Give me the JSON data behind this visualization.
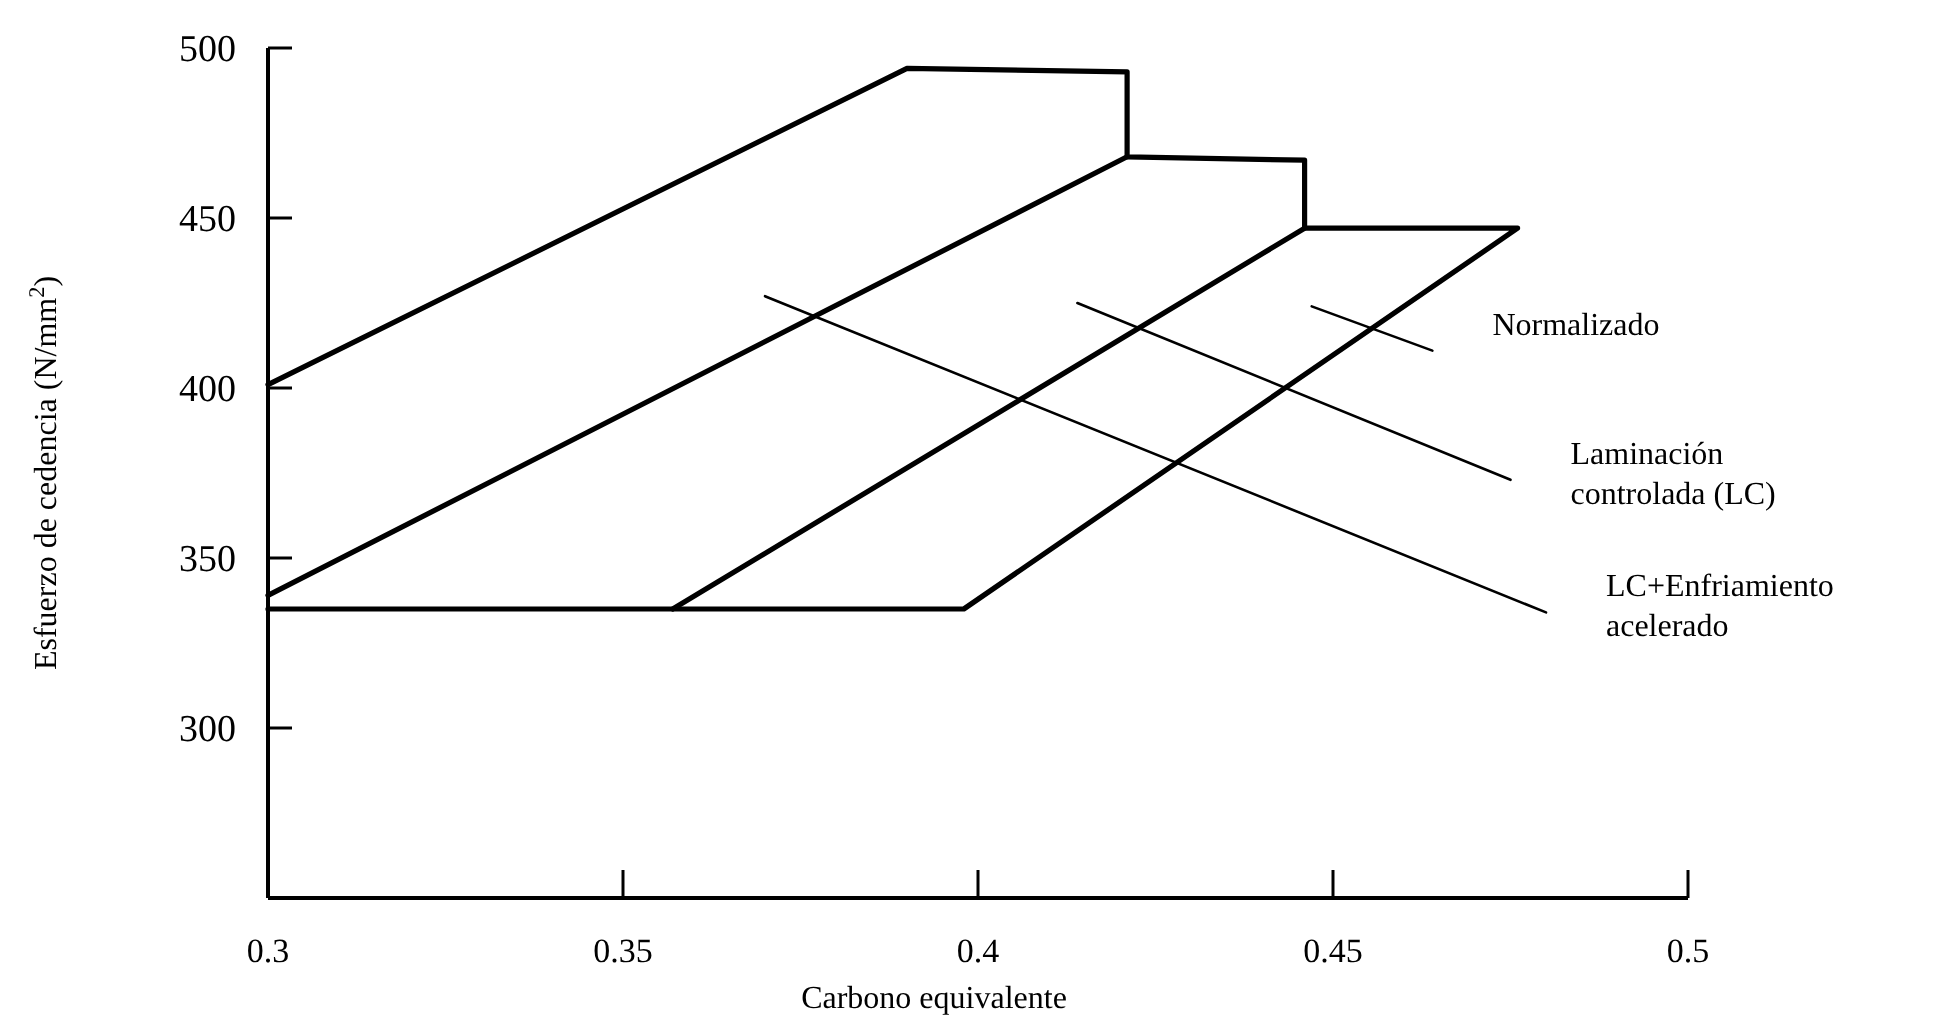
{
  "chart_data": {
    "type": "line",
    "xlabel": "Carbono equivalente",
    "ylabel": "Esfuerzo de cedencia (N/mm$^{2}$)",
    "xlim": [
      0.3,
      0.5
    ],
    "xticks": [
      0.3,
      0.35,
      0.4,
      0.45,
      0.5
    ],
    "ylim": [
      250,
      500
    ],
    "yticks": [
      300,
      350,
      400,
      450,
      500
    ],
    "grid": false,
    "marker": "none",
    "line_style": "solid",
    "series": [
      {
        "color": "#000000",
        "x": [
          0.3,
          0.39,
          0.421,
          0.421,
          0.446,
          0.446,
          0.476,
          0.398,
          0.3
        ],
        "values": [
          401,
          494,
          493,
          468,
          467,
          447,
          447,
          335,
          335
        ]
      },
      {
        "color": "#000000",
        "x": [
          0.3,
          0.421
        ],
        "values": [
          339,
          468
        ]
      },
      {
        "color": "#000000",
        "x": [
          0.357,
          0.446
        ],
        "values": [
          335,
          447
        ]
      },
      {
        "name": "Normalizado",
        "color": "#000000",
        "x": [
          0.447,
          0.464
        ],
        "values": [
          424,
          411
        ]
      },
      {
        "name": "Laminación controlada (LC)",
        "color": "#000000",
        "x": [
          0.414,
          0.475
        ],
        "values": [
          425,
          373
        ]
      },
      {
        "name": "LC+Enfriamiento acelerado",
        "color": "#000000",
        "x": [
          0.37,
          0.48
        ],
        "values": [
          427,
          334
        ]
      }
    ]
  }
}
